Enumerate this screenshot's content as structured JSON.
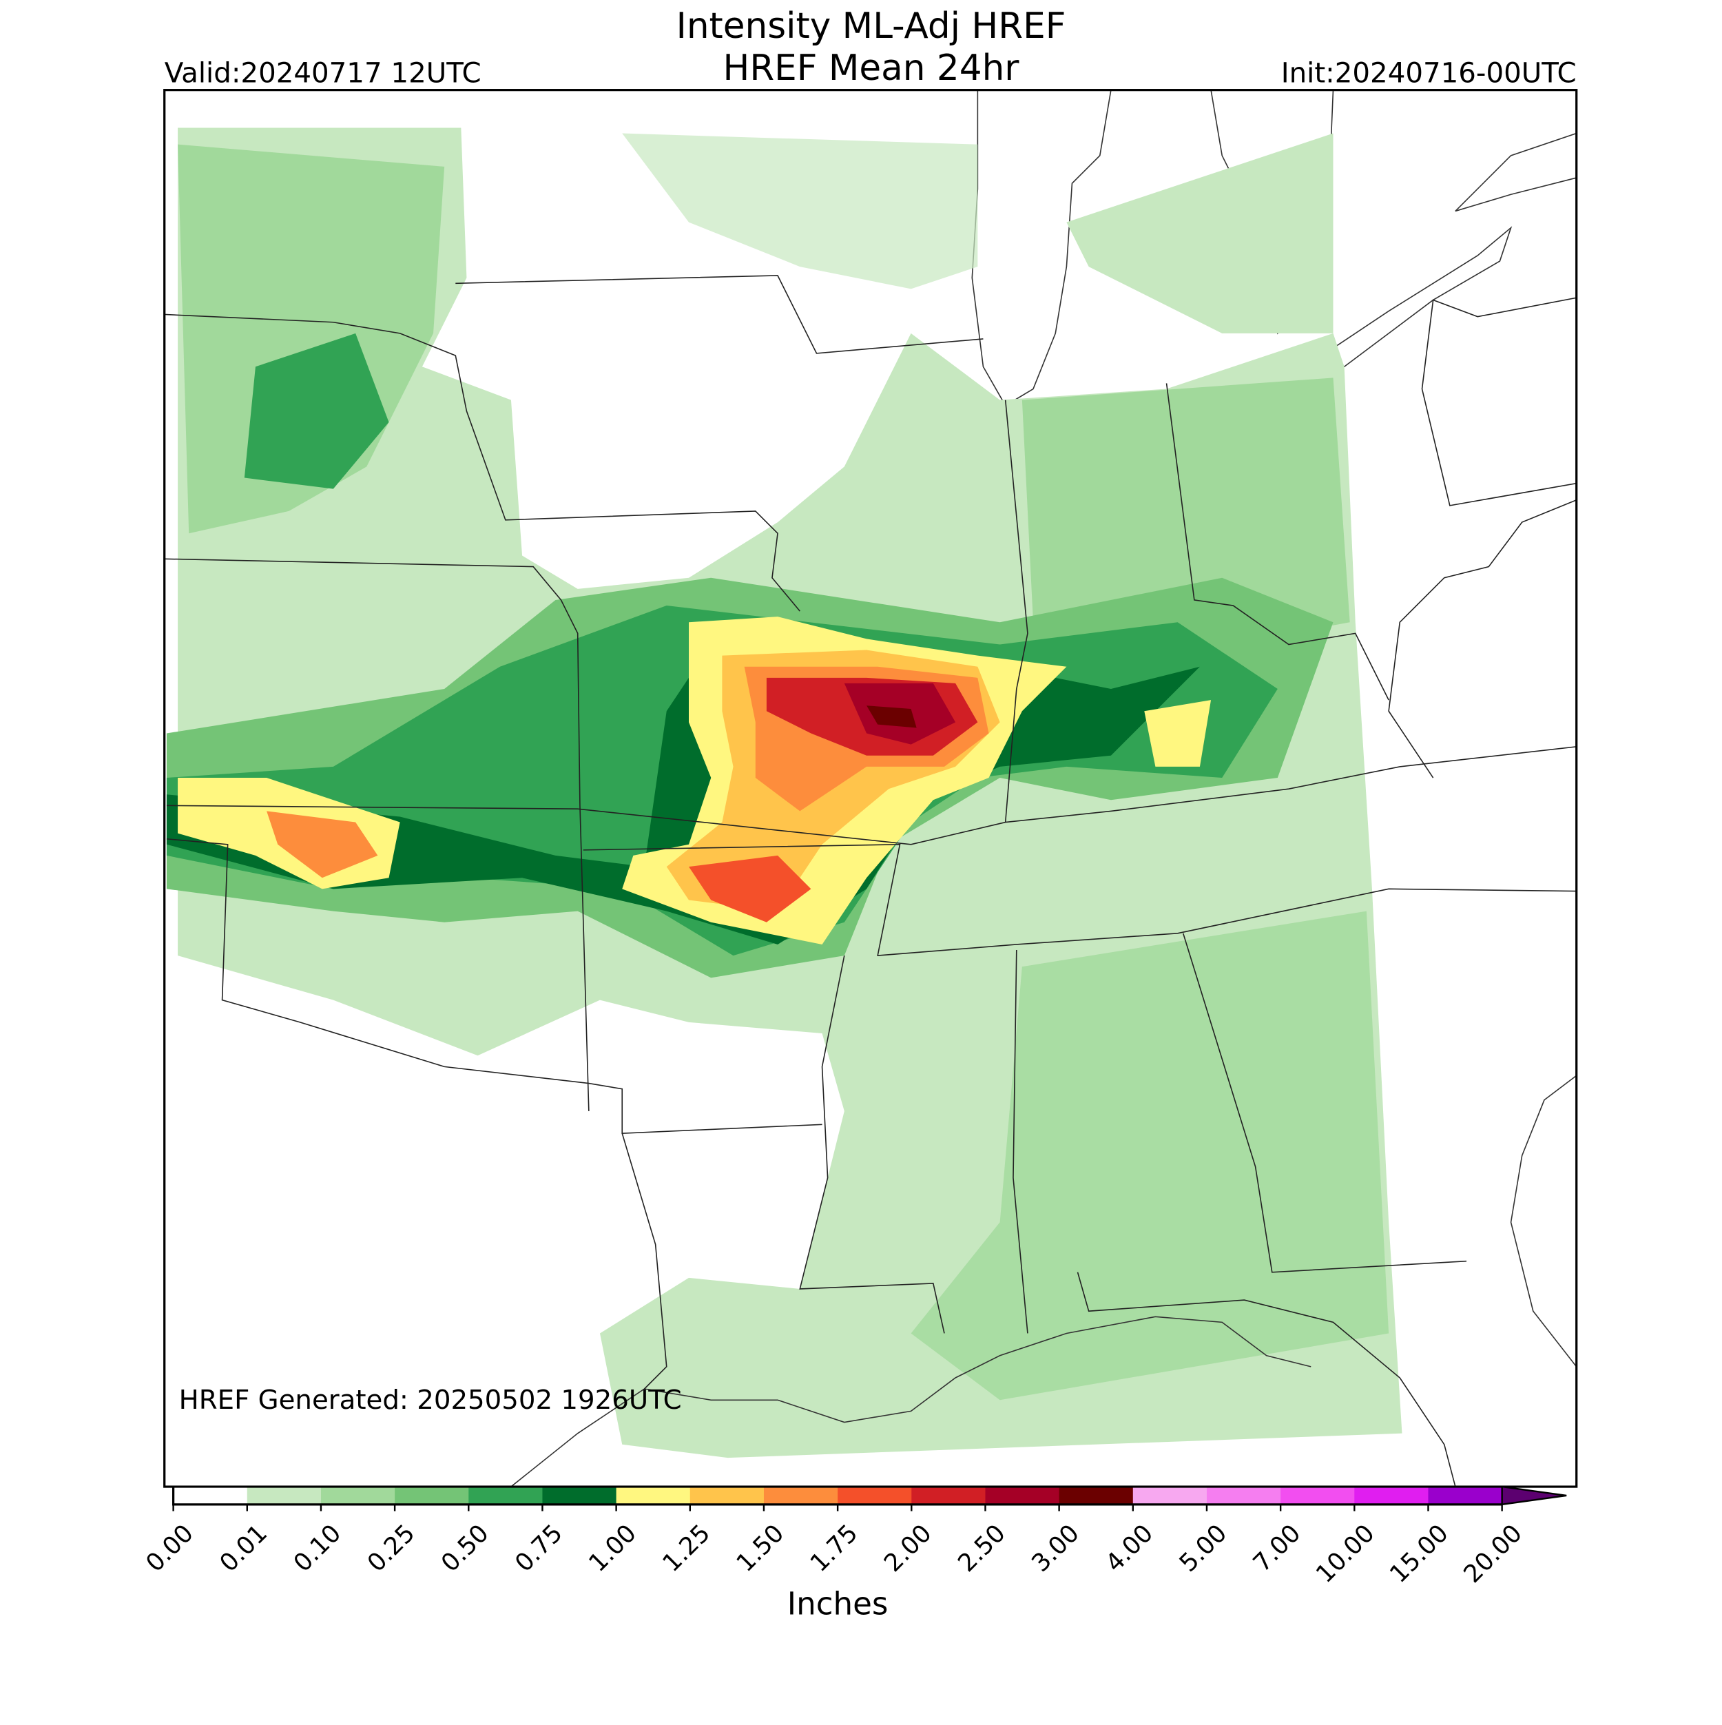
{
  "header": {
    "title": "Intensity ML-Adj HREF",
    "subtitle": "HREF Mean 24hr",
    "valid": "Valid:20240717 12UTC",
    "init": "Init:20240716-00UTC"
  },
  "map": {
    "generated": "HREF Generated: 20250502 1926UTC"
  },
  "colorbar": {
    "label": "Inches",
    "ticks": [
      {
        "value": 0,
        "label": "0.00"
      },
      {
        "value": 0.01,
        "label": "0.01"
      },
      {
        "value": 0.1,
        "label": "0.10"
      },
      {
        "value": 0.25,
        "label": "0.25"
      },
      {
        "value": 0.5,
        "label": "0.50"
      },
      {
        "value": 0.75,
        "label": "0.75"
      },
      {
        "value": 1,
        "label": "1.00"
      },
      {
        "value": 1.25,
        "label": "1.25"
      },
      {
        "value": 1.5,
        "label": "1.50"
      },
      {
        "value": 1.75,
        "label": "1.75"
      },
      {
        "value": 2,
        "label": "2.00"
      },
      {
        "value": 2.5,
        "label": "2.50"
      },
      {
        "value": 3,
        "label": "3.00"
      },
      {
        "value": 4,
        "label": "4.00"
      },
      {
        "value": 5,
        "label": "5.00"
      },
      {
        "value": 7,
        "label": "7.00"
      },
      {
        "value": 10,
        "label": "10.00"
      },
      {
        "value": 15,
        "label": "15.00"
      },
      {
        "value": 20,
        "label": "20.00"
      }
    ],
    "colors": [
      "#ffffff",
      "#c7e8c0",
      "#a1d99b",
      "#74c476",
      "#31a354",
      "#006d2c",
      "#fff780",
      "#ffc44b",
      "#fd8d3c",
      "#f4502a",
      "#d11f25",
      "#a50026",
      "#6b0000",
      "#f7a8f0",
      "#f57ef0",
      "#f24ef0",
      "#e01ef0",
      "#9a00cc"
    ],
    "extend_color": "#5c0070"
  }
}
